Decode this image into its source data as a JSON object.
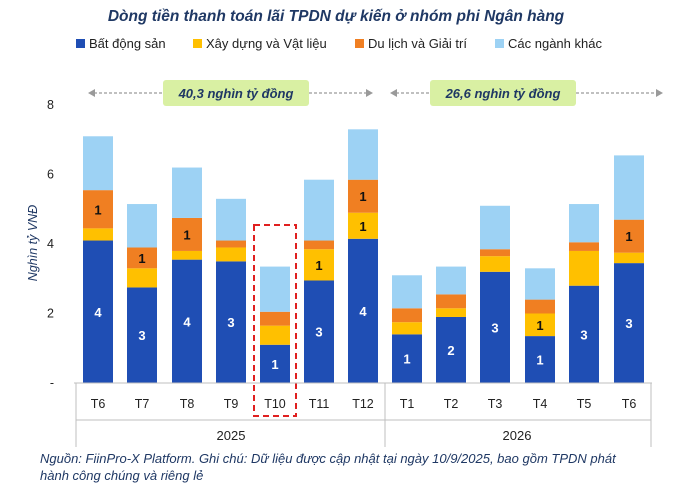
{
  "chart_data": {
    "type": "bar",
    "stacked": true,
    "title": "Dòng tiền thanh toán lãi TPDN dự kiến ở nhóm phi Ngân hàng",
    "ylabel": "Nghìn tỷ VNĐ",
    "ylim": [
      0,
      8
    ],
    "yticks": [
      "-",
      "2",
      "4",
      "6",
      "8"
    ],
    "categories": [
      "T6",
      "T7",
      "T8",
      "T9",
      "T10",
      "T11",
      "T12",
      "T1",
      "T2",
      "T3",
      "T4",
      "T5",
      "T6"
    ],
    "groups": [
      {
        "label": "2025",
        "count": 7,
        "total_label": "40,3 nghìn tỷ đồng"
      },
      {
        "label": "2026",
        "count": 6,
        "total_label": "26,6 nghìn tỷ đồng"
      }
    ],
    "highlight_category_index": 4,
    "legend_position": "top",
    "series": [
      {
        "name": "Bất động sản",
        "color": "#1F4EB4",
        "values": [
          4.1,
          2.75,
          3.55,
          3.5,
          1.1,
          2.95,
          4.15,
          1.4,
          1.9,
          3.2,
          1.35,
          2.8,
          3.45
        ],
        "labels": [
          "4",
          "3",
          "4",
          "3",
          "1",
          "3",
          "4",
          "1",
          "2",
          "3",
          "1",
          "3",
          "3"
        ]
      },
      {
        "name": "Xây dựng và Vật liệu",
        "color": "#FFC000",
        "values": [
          0.35,
          0.55,
          0.25,
          0.4,
          0.55,
          0.9,
          0.75,
          0.35,
          0.25,
          0.45,
          0.65,
          1.0,
          0.3
        ],
        "labels": [
          "",
          "",
          "",
          "",
          "",
          "1",
          "1",
          "",
          "",
          "",
          "1",
          "",
          ""
        ]
      },
      {
        "name": "Du lịch và Giải trí",
        "color": "#F07F22",
        "values": [
          1.1,
          0.6,
          0.95,
          0.2,
          0.4,
          0.25,
          0.95,
          0.4,
          0.4,
          0.2,
          0.4,
          0.25,
          0.95
        ],
        "labels": [
          "1",
          "1",
          "1",
          "",
          "",
          "",
          "1",
          "",
          "",
          "",
          "",
          "",
          "1"
        ]
      },
      {
        "name": "Các ngành khác",
        "color": "#9DD2F4",
        "values": [
          1.55,
          1.25,
          1.45,
          1.2,
          1.3,
          1.75,
          1.45,
          0.95,
          0.8,
          1.25,
          0.9,
          1.1,
          1.85
        ],
        "labels": [
          "",
          "",
          "",
          "",
          "",
          "",
          "",
          "",
          "",
          "",
          "",
          "",
          ""
        ]
      }
    ]
  },
  "note": "Nguồn: FiinPro-X Platform. Ghi chú: Dữ liệu được cập nhật tại ngày 10/9/2025, bao gồm TPDN phát hành công chúng và riêng lẻ"
}
